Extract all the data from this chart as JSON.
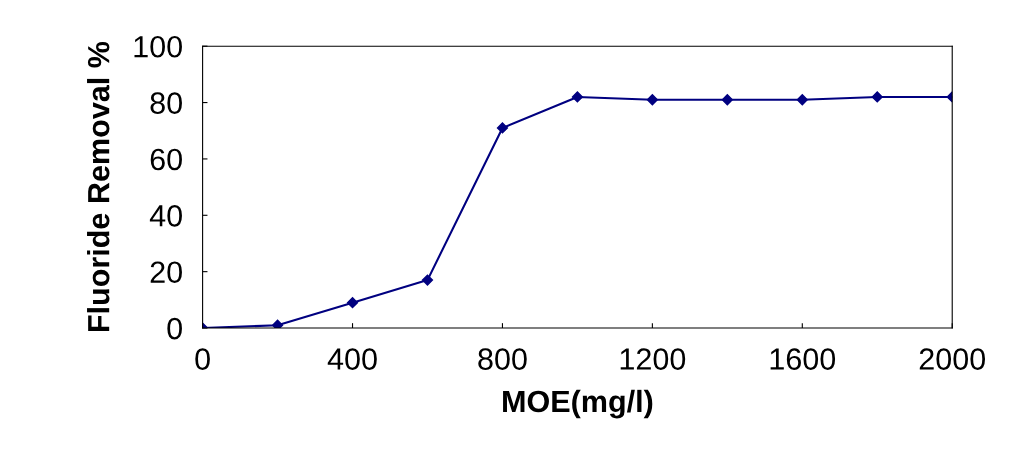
{
  "chart_data": {
    "type": "line",
    "xlabel": "MOE(mg/l)",
    "ylabel": "Fluoride Removal %",
    "x": [
      0,
      200,
      400,
      600,
      800,
      1000,
      1200,
      1400,
      1600,
      1800,
      2000
    ],
    "series": [
      {
        "color": "#000080",
        "values": [
          0,
          1,
          9,
          17,
          71,
          82,
          81,
          81,
          81,
          82,
          82
        ]
      }
    ],
    "xlim": [
      0,
      2000
    ],
    "xticks": [
      0,
      400,
      800,
      1200,
      1600,
      2000
    ],
    "ylim": [
      0,
      100
    ],
    "yticks": [
      0,
      20,
      40,
      60,
      80,
      100
    ],
    "marker": "diamond",
    "line_style": "solid",
    "grid": false,
    "legend": false
  }
}
